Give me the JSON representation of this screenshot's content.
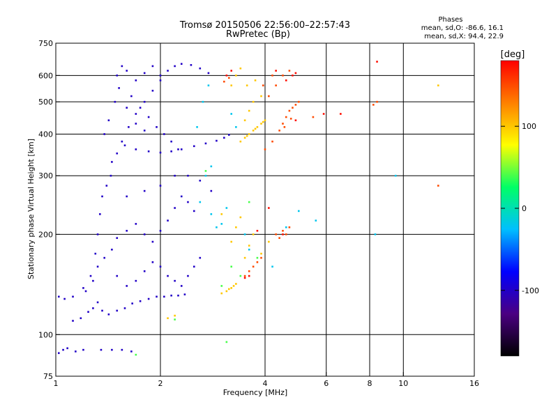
{
  "header": {
    "title_line1": "Tromsø 20150506 22:56:00–22:57:43",
    "title_line2": "RwPretec (Bp)",
    "stats_title": "Phases",
    "stats_o": "mean, sd,O: -86.6, 16.1",
    "stats_x": "mean, sd,X:  94.4, 22.9"
  },
  "chart_data": {
    "type": "scatter",
    "title": "Tromsø 20150506 22:56:00–22:57:43",
    "subtitle": "RwPretec (Bp)",
    "xlabel": "Frequency [MHz]",
    "ylabel": "Stationary phase Virtual Height [km]",
    "x_scale": "log",
    "y_scale": "log",
    "xlim": [
      1,
      16
    ],
    "ylim": [
      75,
      750
    ],
    "x_ticks": [
      1,
      2,
      4,
      6,
      8,
      10,
      16
    ],
    "x_tick_labels": [
      "1",
      "2",
      "4",
      "6",
      "8",
      "10",
      "16"
    ],
    "y_ticks": [
      75,
      100,
      200,
      300,
      400,
      500,
      600,
      750
    ],
    "y_tick_labels": [
      "75",
      "100",
      "200",
      "300",
      "400",
      "500",
      "600",
      "750"
    ],
    "grid": true,
    "colorbar": {
      "label": "[deg]",
      "range": [
        -180,
        180
      ],
      "ticks": [
        100,
        0,
        -100
      ],
      "tick_labels": [
        "100",
        "0",
        "-100"
      ],
      "colormap": [
        "#000000",
        "#4b0082",
        "#0000ff",
        "#00bfff",
        "#00ff66",
        "#ffff00",
        "#ff8000",
        "#ff0000"
      ]
    },
    "series": [
      {
        "value_deg": -100,
        "points": [
          [
            1.02,
            88
          ],
          [
            1.05,
            90
          ],
          [
            1.08,
            91
          ],
          [
            1.14,
            89
          ],
          [
            1.2,
            90
          ],
          [
            1.35,
            90
          ],
          [
            1.45,
            90
          ],
          [
            1.55,
            90
          ],
          [
            1.65,
            89
          ],
          [
            1.02,
            130
          ],
          [
            1.06,
            128
          ],
          [
            1.12,
            110
          ],
          [
            1.18,
            112
          ],
          [
            1.24,
            117
          ],
          [
            1.28,
            120
          ],
          [
            1.32,
            125
          ],
          [
            1.36,
            118
          ],
          [
            1.42,
            115
          ],
          [
            1.5,
            118
          ],
          [
            1.58,
            120
          ],
          [
            1.66,
            124
          ],
          [
            1.75,
            126
          ],
          [
            1.85,
            128
          ],
          [
            1.95,
            130
          ],
          [
            2.05,
            130
          ],
          [
            2.15,
            131
          ],
          [
            2.25,
            131
          ],
          [
            2.35,
            132
          ],
          [
            1.12,
            130
          ],
          [
            1.2,
            138
          ],
          [
            1.26,
            150
          ],
          [
            1.3,
            175
          ],
          [
            1.32,
            200
          ],
          [
            1.34,
            230
          ],
          [
            1.36,
            260
          ],
          [
            1.4,
            280
          ],
          [
            1.44,
            300
          ],
          [
            1.22,
            135
          ],
          [
            1.28,
            145
          ],
          [
            1.32,
            160
          ],
          [
            1.38,
            170
          ],
          [
            1.45,
            180
          ],
          [
            1.5,
            195
          ],
          [
            1.6,
            205
          ],
          [
            1.7,
            215
          ],
          [
            1.8,
            200
          ],
          [
            1.9,
            190
          ],
          [
            2.0,
            205
          ],
          [
            2.1,
            220
          ],
          [
            2.2,
            240
          ],
          [
            2.3,
            260
          ],
          [
            2.4,
            250
          ],
          [
            2.5,
            235
          ],
          [
            1.45,
            330
          ],
          [
            1.5,
            350
          ],
          [
            1.55,
            380
          ],
          [
            1.62,
            420
          ],
          [
            1.7,
            460
          ],
          [
            1.8,
            500
          ],
          [
            1.9,
            540
          ],
          [
            2.0,
            580
          ],
          [
            2.1,
            620
          ],
          [
            2.2,
            640
          ],
          [
            2.3,
            650
          ],
          [
            2.45,
            645
          ],
          [
            2.6,
            630
          ],
          [
            2.75,
            610
          ],
          [
            1.5,
            600
          ],
          [
            1.55,
            640
          ],
          [
            1.6,
            620
          ],
          [
            1.7,
            580
          ],
          [
            1.8,
            610
          ],
          [
            1.9,
            640
          ],
          [
            2.0,
            600
          ],
          [
            1.65,
            520
          ],
          [
            1.75,
            480
          ],
          [
            1.85,
            450
          ],
          [
            1.95,
            420
          ],
          [
            2.05,
            400
          ],
          [
            2.15,
            380
          ],
          [
            2.25,
            360
          ],
          [
            1.58,
            370
          ],
          [
            1.7,
            360
          ],
          [
            1.85,
            355
          ],
          [
            2.0,
            352
          ],
          [
            2.15,
            355
          ],
          [
            2.3,
            360
          ],
          [
            2.5,
            368
          ],
          [
            2.7,
            375
          ],
          [
            2.9,
            382
          ],
          [
            3.05,
            390
          ],
          [
            3.15,
            398
          ],
          [
            1.38,
            400
          ],
          [
            1.42,
            440
          ],
          [
            1.48,
            500
          ],
          [
            1.52,
            550
          ],
          [
            1.6,
            480
          ],
          [
            1.7,
            430
          ],
          [
            1.8,
            410
          ],
          [
            2.4,
            300
          ],
          [
            2.6,
            290
          ],
          [
            2.8,
            270
          ],
          [
            2.2,
            300
          ],
          [
            2.0,
            280
          ],
          [
            1.8,
            270
          ],
          [
            1.6,
            260
          ],
          [
            1.5,
            150
          ],
          [
            1.6,
            140
          ],
          [
            1.7,
            145
          ],
          [
            1.8,
            155
          ],
          [
            1.9,
            165
          ],
          [
            2.0,
            160
          ],
          [
            2.1,
            150
          ],
          [
            2.2,
            145
          ],
          [
            2.3,
            140
          ],
          [
            2.4,
            150
          ],
          [
            2.5,
            160
          ],
          [
            2.6,
            170
          ]
        ]
      },
      {
        "value_deg": -20,
        "points": [
          [
            2.6,
            250
          ],
          [
            2.8,
            230
          ],
          [
            2.9,
            210
          ],
          [
            3.0,
            215
          ],
          [
            3.1,
            240
          ],
          [
            2.7,
            300
          ],
          [
            2.8,
            320
          ],
          [
            2.55,
            420
          ],
          [
            2.65,
            500
          ],
          [
            2.75,
            560
          ],
          [
            3.2,
            460
          ],
          [
            3.3,
            420
          ],
          [
            3.5,
            200
          ],
          [
            3.6,
            180
          ],
          [
            4.2,
            160
          ],
          [
            4.6,
            210
          ],
          [
            5.0,
            235
          ],
          [
            5.6,
            220
          ],
          [
            8.3,
            200
          ],
          [
            9.5,
            300
          ]
        ]
      },
      {
        "value_deg": 40,
        "points": [
          [
            2.2,
            111
          ],
          [
            3.1,
            95
          ],
          [
            3.0,
            140
          ],
          [
            3.2,
            160
          ],
          [
            3.4,
            150
          ],
          [
            3.6,
            250
          ],
          [
            3.8,
            170
          ],
          [
            1.7,
            87
          ],
          [
            2.7,
            310
          ]
        ]
      },
      {
        "value_deg": 100,
        "points": [
          [
            2.1,
            112
          ],
          [
            2.2,
            114
          ],
          [
            3.0,
            133
          ],
          [
            3.1,
            135
          ],
          [
            3.2,
            138
          ],
          [
            3.3,
            142
          ],
          [
            3.15,
            137
          ],
          [
            3.25,
            140
          ],
          [
            3.4,
            380
          ],
          [
            3.5,
            390
          ],
          [
            3.6,
            400
          ],
          [
            3.7,
            410
          ],
          [
            3.8,
            420
          ],
          [
            3.9,
            430
          ],
          [
            4.0,
            440
          ],
          [
            3.55,
            395
          ],
          [
            3.75,
            415
          ],
          [
            3.95,
            435
          ],
          [
            3.5,
            440
          ],
          [
            3.6,
            470
          ],
          [
            3.7,
            500
          ],
          [
            3.9,
            520
          ],
          [
            3.55,
            560
          ],
          [
            3.75,
            580
          ],
          [
            3.3,
            600
          ],
          [
            3.4,
            630
          ],
          [
            3.2,
            560
          ],
          [
            3.5,
            170
          ],
          [
            3.6,
            185
          ],
          [
            3.7,
            200
          ],
          [
            3.9,
            175
          ],
          [
            3.3,
            210
          ],
          [
            3.4,
            225
          ],
          [
            3.0,
            230
          ],
          [
            3.2,
            190
          ],
          [
            4.1,
            190
          ],
          [
            12.6,
            560
          ]
        ]
      },
      {
        "value_deg": 150,
        "points": [
          [
            3.5,
            150
          ],
          [
            3.6,
            155
          ],
          [
            3.7,
            160
          ],
          [
            3.8,
            165
          ],
          [
            3.9,
            170
          ],
          [
            4.3,
            200
          ],
          [
            4.5,
            205
          ],
          [
            4.7,
            210
          ],
          [
            4.4,
            195
          ],
          [
            4.6,
            200
          ],
          [
            4.4,
            410
          ],
          [
            4.5,
            430
          ],
          [
            4.6,
            450
          ],
          [
            4.7,
            470
          ],
          [
            4.8,
            480
          ],
          [
            4.9,
            490
          ],
          [
            5.0,
            500
          ],
          [
            4.55,
            420
          ],
          [
            4.75,
            445
          ],
          [
            4.1,
            520
          ],
          [
            4.3,
            560
          ],
          [
            4.5,
            600
          ],
          [
            4.7,
            620
          ],
          [
            3.95,
            560
          ],
          [
            4.2,
            600
          ],
          [
            5.5,
            450
          ],
          [
            8.2,
            490
          ],
          [
            8.4,
            500
          ],
          [
            3.05,
            575
          ],
          [
            3.15,
            590
          ],
          [
            4.0,
            360
          ],
          [
            4.2,
            380
          ],
          [
            12.6,
            280
          ]
        ]
      },
      {
        "value_deg": 175,
        "points": [
          [
            3.1,
            600
          ],
          [
            3.2,
            620
          ],
          [
            4.6,
            580
          ],
          [
            4.8,
            600
          ],
          [
            4.9,
            610
          ],
          [
            4.3,
            620
          ],
          [
            4.9,
            440
          ],
          [
            5.9,
            460
          ],
          [
            6.6,
            460
          ],
          [
            8.4,
            660
          ],
          [
            3.8,
            205
          ],
          [
            4.5,
            200
          ],
          [
            4.1,
            240
          ],
          [
            3.6,
            150
          ],
          [
            3.5,
            148
          ]
        ]
      }
    ]
  }
}
